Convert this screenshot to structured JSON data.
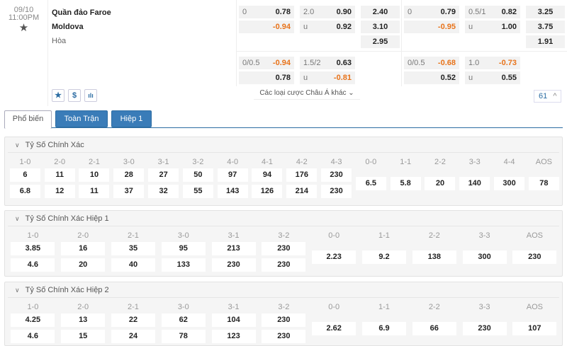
{
  "match": {
    "date": "09/10",
    "time": "11:00PM",
    "home": "Quần đảo Faroe",
    "away": "Moldova",
    "draw": "Hòa"
  },
  "odds": {
    "ft": {
      "hdp": [
        {
          "l": "0",
          "v": "0.78"
        },
        {
          "l": "",
          "v": "-0.94"
        }
      ],
      "ou": [
        {
          "l": "2.0",
          "v": "0.90"
        },
        {
          "l": "u",
          "v": "0.92"
        }
      ],
      "x12": [
        "2.40",
        "3.10",
        "2.95"
      ],
      "hdp2": [
        {
          "l": "0/0.5",
          "v": "-0.94"
        },
        {
          "l": "",
          "v": "0.78"
        }
      ],
      "ou2": [
        {
          "l": "1.5/2",
          "v": "0.63"
        },
        {
          "l": "u",
          "v": "-0.81"
        }
      ]
    },
    "h1": {
      "hdp": [
        {
          "l": "0",
          "v": "0.79"
        },
        {
          "l": "",
          "v": "-0.95"
        }
      ],
      "ou": [
        {
          "l": "0.5/1",
          "v": "0.82"
        },
        {
          "l": "u",
          "v": "1.00"
        }
      ],
      "x12": [
        "3.25",
        "3.75",
        "1.91"
      ],
      "hdp2": [
        {
          "l": "0/0.5",
          "v": "-0.68"
        },
        {
          "l": "",
          "v": "0.52"
        }
      ],
      "ou2": [
        {
          "l": "1.0",
          "v": "-0.73"
        },
        {
          "l": "u",
          "v": "0.55"
        }
      ]
    }
  },
  "footer": {
    "icons": [
      "star-icon",
      "dollar-icon",
      "stats-icon"
    ],
    "more": "Các loại cược Châu Á khác",
    "count": "61"
  },
  "tabs": [
    "Phổ biến",
    "Toàn Trận",
    "Hiệp 1"
  ],
  "panels": [
    {
      "title": "Tỷ Số Chính Xác",
      "cols": [
        {
          "l": "1-0",
          "v": [
            "6",
            "6.8"
          ]
        },
        {
          "l": "2-0",
          "v": [
            "11",
            "12"
          ]
        },
        {
          "l": "2-1",
          "v": [
            "10",
            "11"
          ]
        },
        {
          "l": "3-0",
          "v": [
            "28",
            "37"
          ]
        },
        {
          "l": "3-1",
          "v": [
            "27",
            "32"
          ]
        },
        {
          "l": "3-2",
          "v": [
            "50",
            "55"
          ]
        },
        {
          "l": "4-0",
          "v": [
            "97",
            "143"
          ]
        },
        {
          "l": "4-1",
          "v": [
            "94",
            "126"
          ]
        },
        {
          "l": "4-2",
          "v": [
            "176",
            "214"
          ]
        },
        {
          "l": "4-3",
          "v": [
            "230",
            "230"
          ]
        },
        {
          "l": "0-0",
          "v": [
            "6.5"
          ]
        },
        {
          "l": "1-1",
          "v": [
            "5.8"
          ]
        },
        {
          "l": "2-2",
          "v": [
            "20"
          ]
        },
        {
          "l": "3-3",
          "v": [
            "140"
          ]
        },
        {
          "l": "4-4",
          "v": [
            "300"
          ]
        },
        {
          "l": "AOS",
          "v": [
            "78"
          ]
        }
      ]
    },
    {
      "title": "Tỷ Số Chính Xác Hiệp 1",
      "cols": [
        {
          "l": "1-0",
          "v": [
            "3.85",
            "4.6"
          ]
        },
        {
          "l": "2-0",
          "v": [
            "16",
            "20"
          ]
        },
        {
          "l": "2-1",
          "v": [
            "35",
            "40"
          ]
        },
        {
          "l": "3-0",
          "v": [
            "95",
            "133"
          ]
        },
        {
          "l": "3-1",
          "v": [
            "213",
            "230"
          ]
        },
        {
          "l": "3-2",
          "v": [
            "230",
            "230"
          ]
        },
        {
          "l": "0-0",
          "v": [
            "2.23"
          ]
        },
        {
          "l": "1-1",
          "v": [
            "9.2"
          ]
        },
        {
          "l": "2-2",
          "v": [
            "138"
          ]
        },
        {
          "l": "3-3",
          "v": [
            "300"
          ]
        },
        {
          "l": "AOS",
          "v": [
            "230"
          ]
        }
      ]
    },
    {
      "title": "Tỷ Số Chính Xác Hiệp 2",
      "cols": [
        {
          "l": "1-0",
          "v": [
            "4.25",
            "4.6"
          ]
        },
        {
          "l": "2-0",
          "v": [
            "13",
            "15"
          ]
        },
        {
          "l": "2-1",
          "v": [
            "22",
            "24"
          ]
        },
        {
          "l": "3-0",
          "v": [
            "62",
            "78"
          ]
        },
        {
          "l": "3-1",
          "v": [
            "104",
            "123"
          ]
        },
        {
          "l": "3-2",
          "v": [
            "230",
            "230"
          ]
        },
        {
          "l": "0-0",
          "v": [
            "2.62"
          ]
        },
        {
          "l": "1-1",
          "v": [
            "6.9"
          ]
        },
        {
          "l": "2-2",
          "v": [
            "66"
          ]
        },
        {
          "l": "3-3",
          "v": [
            "230"
          ]
        },
        {
          "l": "AOS",
          "v": [
            "107"
          ]
        }
      ]
    }
  ],
  "colors": {
    "accent": "#3a7cb8",
    "negative": "#e8731a"
  }
}
